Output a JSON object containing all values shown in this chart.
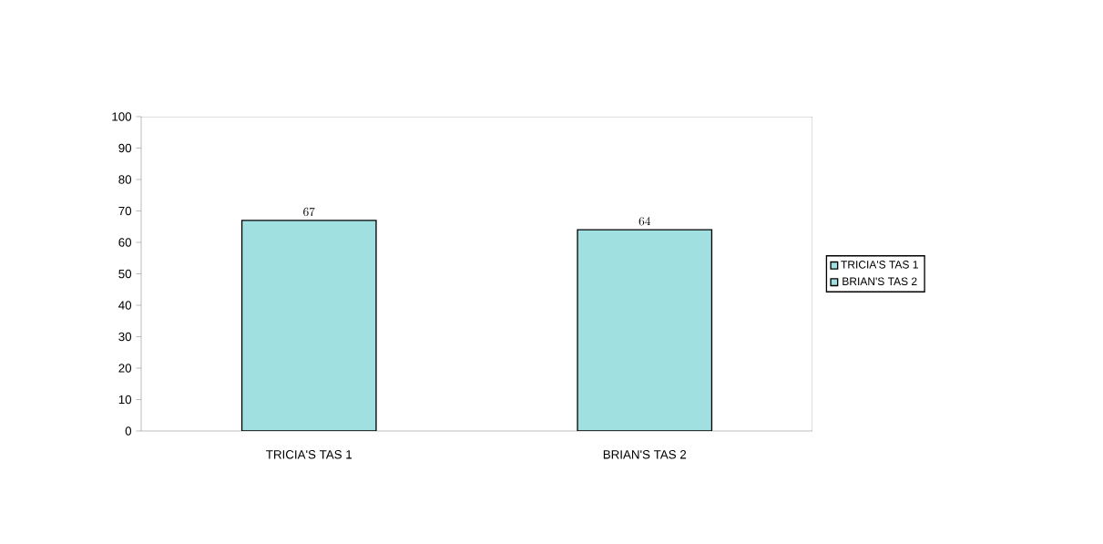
{
  "chart_data": {
    "type": "bar",
    "categories": [
      "TRICIA'S TAS 1",
      "BRIAN'S TAS 2"
    ],
    "series": [
      {
        "name": "TRICIA'S TAS 1",
        "color": "#a0e0e0",
        "values": [
          67,
          null
        ]
      },
      {
        "name": "BRIAN'S TAS 2",
        "color": "#a0e0e0",
        "values": [
          null,
          64
        ]
      }
    ],
    "ylim": [
      0,
      100
    ],
    "yticks": [
      0,
      10,
      20,
      30,
      40,
      50,
      60,
      70,
      80,
      90,
      100
    ],
    "data_labels": true,
    "legend": "right",
    "grid": false
  }
}
